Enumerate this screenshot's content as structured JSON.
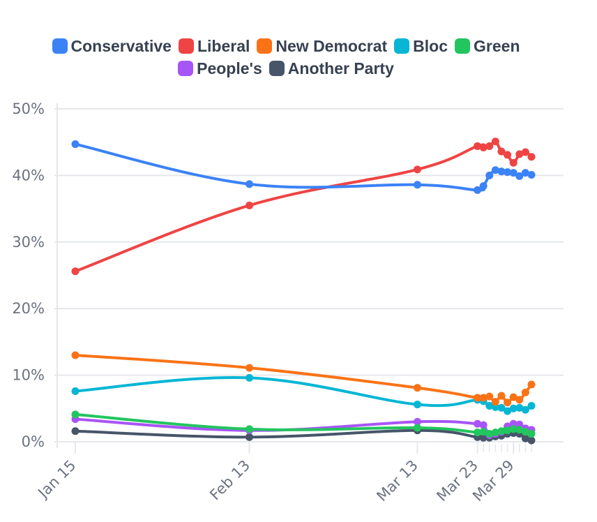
{
  "chart_data": {
    "type": "line",
    "ylim": [
      0,
      50
    ],
    "yticks": [
      "0%",
      "10%",
      "20%",
      "30%",
      "40%",
      "50%"
    ],
    "ytick_values": [
      0,
      10,
      20,
      30,
      40,
      50
    ],
    "xlim_days": [
      0,
      76
    ],
    "xticks": [
      {
        "label": "Jan 15",
        "day": 0
      },
      {
        "label": "Feb 13",
        "day": 29
      },
      {
        "label": "Mar 13",
        "day": 57
      },
      {
        "label": "Mar 23",
        "day": 67
      },
      {
        "label": "Mar 29",
        "day": 73
      }
    ],
    "grid": true,
    "legend_position": "top-center",
    "series": [
      {
        "name": "Conservative",
        "color": "#3b82f6",
        "points": [
          [
            0,
            44.7
          ],
          [
            29,
            38.7
          ],
          [
            57,
            38.6
          ],
          [
            67,
            37.8
          ],
          [
            68,
            38.4
          ],
          [
            69,
            40.0
          ],
          [
            70,
            40.8
          ],
          [
            71,
            40.6
          ],
          [
            72,
            40.5
          ],
          [
            73,
            40.4
          ],
          [
            74,
            39.9
          ],
          [
            75,
            40.4
          ],
          [
            76,
            40.1
          ]
        ]
      },
      {
        "name": "Liberal",
        "color": "#ef4444",
        "points": [
          [
            0,
            25.6
          ],
          [
            29,
            35.5
          ],
          [
            57,
            40.9
          ],
          [
            67,
            44.4
          ],
          [
            68,
            44.2
          ],
          [
            69,
            44.4
          ],
          [
            70,
            45.1
          ],
          [
            71,
            43.6
          ],
          [
            72,
            43.1
          ],
          [
            73,
            41.9
          ],
          [
            74,
            43.2
          ],
          [
            75,
            43.5
          ],
          [
            76,
            42.8
          ]
        ]
      },
      {
        "name": "New Democrat",
        "color": "#f97316",
        "points": [
          [
            0,
            13.0
          ],
          [
            29,
            11.1
          ],
          [
            57,
            8.1
          ],
          [
            67,
            6.6
          ],
          [
            68,
            6.6
          ],
          [
            69,
            6.8
          ],
          [
            70,
            6.0
          ],
          [
            71,
            6.9
          ],
          [
            72,
            5.9
          ],
          [
            73,
            6.7
          ],
          [
            74,
            6.3
          ],
          [
            75,
            7.4
          ],
          [
            76,
            8.6
          ]
        ]
      },
      {
        "name": "Bloc",
        "color": "#06b6d4",
        "points": [
          [
            0,
            7.6
          ],
          [
            29,
            9.6
          ],
          [
            57,
            5.6
          ],
          [
            67,
            6.3
          ],
          [
            68,
            6.1
          ],
          [
            69,
            5.4
          ],
          [
            70,
            5.2
          ],
          [
            71,
            5.1
          ],
          [
            72,
            4.6
          ],
          [
            73,
            5.0
          ],
          [
            74,
            5.1
          ],
          [
            75,
            4.8
          ],
          [
            76,
            5.4
          ]
        ]
      },
      {
        "name": "Green",
        "color": "#22c55e",
        "points": [
          [
            0,
            4.1
          ],
          [
            29,
            1.9
          ],
          [
            57,
            2.1
          ],
          [
            67,
            1.4
          ],
          [
            68,
            1.5
          ],
          [
            69,
            1.2
          ],
          [
            70,
            1.4
          ],
          [
            71,
            1.6
          ],
          [
            72,
            1.7
          ],
          [
            73,
            1.9
          ],
          [
            74,
            1.8
          ],
          [
            75,
            1.5
          ],
          [
            76,
            1.2
          ]
        ]
      },
      {
        "name": "People's",
        "color": "#a855f7",
        "points": [
          [
            0,
            3.4
          ],
          [
            29,
            1.7
          ],
          [
            57,
            3.0
          ],
          [
            67,
            2.7
          ],
          [
            68,
            2.5
          ],
          [
            69,
            1.0
          ],
          [
            70,
            1.2
          ],
          [
            71,
            1.5
          ],
          [
            72,
            2.3
          ],
          [
            73,
            2.7
          ],
          [
            74,
            2.6
          ],
          [
            75,
            2.0
          ],
          [
            76,
            1.8
          ]
        ]
      },
      {
        "name": "Another Party",
        "color": "#475569",
        "points": [
          [
            0,
            1.6
          ],
          [
            29,
            0.7
          ],
          [
            57,
            1.7
          ],
          [
            67,
            0.7
          ],
          [
            68,
            0.6
          ],
          [
            69,
            0.6
          ],
          [
            70,
            0.8
          ],
          [
            71,
            0.9
          ],
          [
            72,
            1.2
          ],
          [
            73,
            1.3
          ],
          [
            74,
            1.2
          ],
          [
            75,
            0.5
          ],
          [
            76,
            0.2
          ]
        ]
      }
    ]
  }
}
